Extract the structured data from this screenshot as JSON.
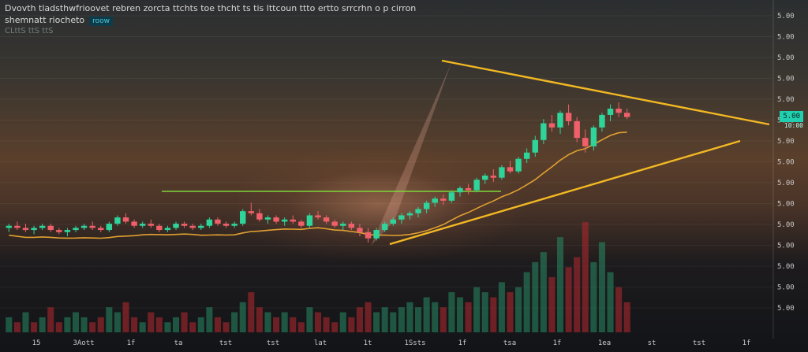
{
  "header": {
    "title": "Dvovth tladsthwfrioovet rebren zorcta ttchts toe thcht ts tis lttcoun ttto ertto srrcrhn o p cirron",
    "subtitle": "shemnatt riocheto",
    "badge": "roow",
    "info": "CLttS ttS ttS"
  },
  "price_tag": {
    "value": "5.00",
    "sub": "10:00"
  },
  "chart_data": {
    "type": "candlestick",
    "y_axis_labels": [
      "5.00",
      "5.00",
      "5.00",
      "5.00",
      "5.00",
      "5.00",
      "5.00",
      "5.00",
      "5.00",
      "5.00",
      "5.00",
      "5.00",
      "5.00",
      "5.00",
      "5.00"
    ],
    "x_axis_labels": [
      "15",
      "3Aott",
      "1f",
      "ta",
      "tst",
      "tst",
      "lat",
      "1t",
      "1Ssts",
      "1f",
      "tsa",
      "1f",
      "1ea",
      "st",
      "tst",
      "1f"
    ],
    "candles": [
      [
        2.0,
        2.2,
        1.8,
        2.1
      ],
      [
        2.1,
        2.3,
        1.9,
        2.0
      ],
      [
        2.0,
        2.2,
        1.8,
        1.9
      ],
      [
        1.9,
        2.1,
        1.7,
        2.0
      ],
      [
        2.0,
        2.2,
        1.9,
        2.1
      ],
      [
        2.1,
        2.2,
        1.8,
        1.9
      ],
      [
        1.9,
        2.0,
        1.7,
        1.8
      ],
      [
        1.8,
        2.0,
        1.6,
        1.9
      ],
      [
        1.9,
        2.1,
        1.8,
        2.0
      ],
      [
        2.0,
        2.2,
        1.9,
        2.1
      ],
      [
        2.1,
        2.3,
        1.9,
        2.0
      ],
      [
        2.0,
        2.1,
        1.8,
        1.9
      ],
      [
        1.9,
        2.3,
        1.8,
        2.2
      ],
      [
        2.2,
        2.6,
        2.1,
        2.5
      ],
      [
        2.5,
        2.7,
        2.2,
        2.3
      ],
      [
        2.3,
        2.4,
        2.0,
        2.1
      ],
      [
        2.1,
        2.3,
        2.0,
        2.2
      ],
      [
        2.2,
        2.4,
        2.0,
        2.1
      ],
      [
        2.1,
        2.2,
        1.8,
        1.9
      ],
      [
        1.9,
        2.1,
        1.8,
        2.0
      ],
      [
        2.0,
        2.3,
        1.9,
        2.2
      ],
      [
        2.2,
        2.3,
        2.0,
        2.1
      ],
      [
        2.1,
        2.2,
        1.9,
        2.0
      ],
      [
        2.0,
        2.2,
        1.9,
        2.1
      ],
      [
        2.1,
        2.5,
        2.0,
        2.4
      ],
      [
        2.4,
        2.5,
        2.1,
        2.2
      ],
      [
        2.2,
        2.3,
        2.0,
        2.1
      ],
      [
        2.1,
        2.3,
        2.0,
        2.2
      ],
      [
        2.2,
        2.9,
        2.1,
        2.8
      ],
      [
        2.8,
        3.2,
        2.6,
        2.7
      ],
      [
        2.7,
        2.9,
        2.3,
        2.4
      ],
      [
        2.4,
        2.6,
        2.2,
        2.5
      ],
      [
        2.5,
        2.6,
        2.2,
        2.3
      ],
      [
        2.3,
        2.5,
        2.1,
        2.4
      ],
      [
        2.4,
        2.6,
        2.2,
        2.3
      ],
      [
        2.3,
        2.4,
        2.0,
        2.1
      ],
      [
        2.1,
        2.7,
        2.0,
        2.6
      ],
      [
        2.6,
        2.8,
        2.4,
        2.5
      ],
      [
        2.5,
        2.6,
        2.2,
        2.3
      ],
      [
        2.3,
        2.4,
        2.0,
        2.1
      ],
      [
        2.1,
        2.3,
        1.9,
        2.2
      ],
      [
        2.2,
        2.3,
        1.9,
        2.0
      ],
      [
        2.0,
        2.2,
        1.6,
        1.8
      ],
      [
        1.8,
        2.0,
        1.3,
        1.5
      ],
      [
        1.5,
        2.0,
        1.4,
        1.9
      ],
      [
        1.9,
        2.3,
        1.8,
        2.2
      ],
      [
        2.2,
        2.5,
        2.1,
        2.4
      ],
      [
        2.4,
        2.7,
        2.2,
        2.6
      ],
      [
        2.6,
        2.8,
        2.4,
        2.7
      ],
      [
        2.7,
        3.0,
        2.5,
        2.9
      ],
      [
        2.9,
        3.3,
        2.7,
        3.2
      ],
      [
        3.2,
        3.5,
        3.0,
        3.4
      ],
      [
        3.4,
        3.6,
        3.1,
        3.3
      ],
      [
        3.3,
        3.8,
        3.2,
        3.7
      ],
      [
        3.7,
        4.0,
        3.5,
        3.9
      ],
      [
        3.9,
        4.1,
        3.6,
        3.8
      ],
      [
        3.8,
        4.4,
        3.7,
        4.3
      ],
      [
        4.3,
        4.6,
        4.1,
        4.5
      ],
      [
        4.5,
        4.8,
        4.2,
        4.4
      ],
      [
        4.4,
        5.0,
        4.3,
        4.9
      ],
      [
        4.9,
        5.2,
        4.6,
        4.7
      ],
      [
        4.7,
        5.4,
        4.6,
        5.3
      ],
      [
        5.3,
        5.8,
        5.1,
        5.6
      ],
      [
        5.6,
        6.4,
        5.4,
        6.2
      ],
      [
        6.2,
        7.2,
        6.0,
        7.0
      ],
      [
        7.0,
        7.4,
        6.6,
        6.8
      ],
      [
        6.8,
        7.6,
        6.5,
        7.5
      ],
      [
        7.5,
        7.9,
        6.9,
        7.1
      ],
      [
        7.1,
        7.3,
        6.1,
        6.3
      ],
      [
        6.3,
        6.7,
        5.6,
        5.9
      ],
      [
        5.9,
        6.9,
        5.7,
        6.8
      ],
      [
        6.8,
        7.5,
        6.6,
        7.4
      ],
      [
        7.4,
        7.9,
        7.1,
        7.7
      ],
      [
        7.7,
        8.0,
        7.3,
        7.5
      ],
      [
        7.5,
        7.7,
        7.2,
        7.3
      ]
    ],
    "volume": [
      3,
      2,
      4,
      2,
      3,
      5,
      2,
      3,
      4,
      3,
      2,
      3,
      5,
      4,
      6,
      3,
      2,
      4,
      3,
      2,
      3,
      4,
      2,
      3,
      5,
      3,
      2,
      4,
      6,
      8,
      5,
      4,
      3,
      4,
      3,
      2,
      5,
      4,
      3,
      2,
      4,
      3,
      5,
      6,
      4,
      5,
      4,
      5,
      6,
      5,
      7,
      6,
      5,
      8,
      7,
      6,
      9,
      8,
      7,
      10,
      8,
      9,
      12,
      14,
      16,
      11,
      19,
      13,
      15,
      22,
      14,
      18,
      12,
      9,
      6
    ],
    "volume_up": [
      true,
      false,
      true,
      false,
      true,
      false,
      false,
      true,
      true,
      true,
      false,
      false,
      true,
      true,
      false,
      false,
      true,
      false,
      false,
      true,
      true,
      false,
      false,
      true,
      true,
      false,
      false,
      true,
      true,
      false,
      false,
      true,
      false,
      true,
      false,
      false,
      true,
      false,
      false,
      false,
      true,
      false,
      false,
      false,
      true,
      true,
      true,
      true,
      true,
      true,
      true,
      true,
      false,
      true,
      true,
      false,
      true,
      true,
      false,
      true,
      false,
      true,
      true,
      true,
      true,
      false,
      true,
      false,
      false,
      false,
      true,
      true,
      true,
      false,
      false
    ]
  }
}
